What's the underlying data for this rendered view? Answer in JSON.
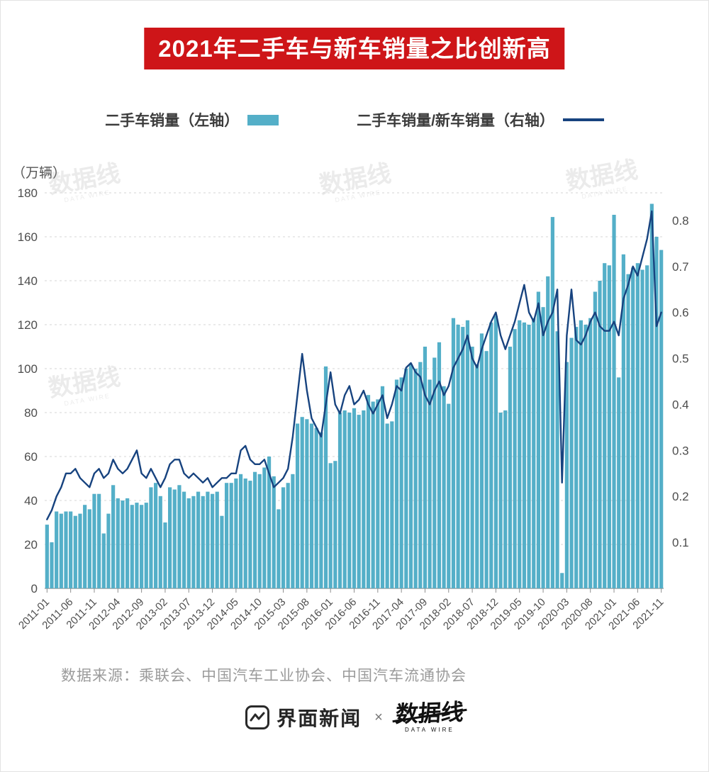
{
  "banner": {
    "title": "2021年二手车与新车销量之比创新高",
    "bg_color": "#ce1518",
    "text_color": "#ffffff"
  },
  "legend": {
    "bar_label": "二手车销量（左轴）",
    "line_label": "二手车销量/新车销量（右轴）"
  },
  "colors": {
    "bar": "#54afc8",
    "line": "#17437f",
    "grid": "#d6d6d6",
    "axis_text": "#4d4d4d",
    "baseline": "#8f8f8f"
  },
  "chart_data": {
    "type": "bar",
    "subtype": "combo-bar-line",
    "title": "2021年二手车与新车销量之比创新高",
    "unit_label": "（万辆）",
    "n_points": 131,
    "tick_interval": 5,
    "x_ticks": [
      "2011-01",
      "2011-06",
      "2011-11",
      "2012-04",
      "2012-09",
      "2013-02",
      "2013-07",
      "2013-12",
      "2014-05",
      "2014-10",
      "2015-03",
      "2015-08",
      "2016-01",
      "2016-06",
      "2016-11",
      "2017-04",
      "2017-09",
      "2018-02",
      "2018-07",
      "2018-12",
      "2019-05",
      "2019-10",
      "2020-03",
      "2020-08",
      "2021-01",
      "2021-06",
      "2021-11"
    ],
    "left_axis": {
      "min": 0,
      "max": 180,
      "ticks": [
        0,
        20,
        40,
        60,
        80,
        100,
        120,
        140,
        160,
        180
      ],
      "label": "（万辆）"
    },
    "right_axis": {
      "min": 0,
      "plot_max": 0.86,
      "ticks": [
        0.1,
        0.2,
        0.3,
        0.4,
        0.5,
        0.6,
        0.7,
        0.8
      ]
    },
    "grid": "dashed-horizontal",
    "legend_position": "top",
    "series": [
      {
        "name": "二手车销量（左轴）",
        "type": "bar",
        "axis": "left",
        "values": [
          29,
          21,
          35,
          34,
          35,
          35,
          33,
          34,
          38,
          36,
          43,
          43,
          25,
          34,
          47,
          41,
          40,
          41,
          38,
          39,
          38,
          39,
          46,
          48,
          42,
          30,
          46,
          45,
          47,
          44,
          41,
          42,
          44,
          42,
          44,
          43,
          44,
          33,
          48,
          48,
          50,
          52,
          50,
          49,
          53,
          52,
          55,
          60,
          51,
          36,
          46,
          48,
          52,
          75,
          78,
          77,
          75,
          73,
          71,
          101,
          57,
          58,
          80,
          81,
          80,
          82,
          79,
          81,
          88,
          85,
          86,
          92,
          75,
          76,
          95,
          96,
          100,
          102,
          100,
          103,
          110,
          95,
          105,
          112,
          92,
          84,
          123,
          120,
          119,
          122,
          110,
          102,
          116,
          108,
          121,
          124,
          80,
          81,
          110,
          118,
          122,
          121,
          120,
          123,
          135,
          128,
          142,
          169,
          117,
          7,
          103,
          114,
          119,
          122,
          120,
          123,
          135,
          140,
          148,
          147,
          170,
          96,
          152,
          143,
          146,
          148,
          145,
          147,
          175,
          160,
          154
        ]
      },
      {
        "name": "二手车销量/新车销量（右轴）",
        "type": "line",
        "axis": "right",
        "values": [
          0.15,
          0.17,
          0.2,
          0.22,
          0.25,
          0.25,
          0.26,
          0.24,
          0.23,
          0.22,
          0.25,
          0.26,
          0.24,
          0.25,
          0.28,
          0.26,
          0.25,
          0.26,
          0.28,
          0.3,
          0.25,
          0.24,
          0.26,
          0.24,
          0.22,
          0.24,
          0.27,
          0.28,
          0.28,
          0.25,
          0.24,
          0.25,
          0.24,
          0.23,
          0.24,
          0.22,
          0.23,
          0.24,
          0.24,
          0.25,
          0.25,
          0.3,
          0.31,
          0.28,
          0.27,
          0.27,
          0.28,
          0.25,
          0.22,
          0.23,
          0.24,
          0.26,
          0.33,
          0.42,
          0.51,
          0.43,
          0.37,
          0.35,
          0.33,
          0.4,
          0.47,
          0.4,
          0.38,
          0.42,
          0.44,
          0.4,
          0.41,
          0.43,
          0.4,
          0.38,
          0.4,
          0.42,
          0.37,
          0.4,
          0.44,
          0.43,
          0.48,
          0.49,
          0.47,
          0.46,
          0.42,
          0.4,
          0.43,
          0.45,
          0.42,
          0.44,
          0.48,
          0.5,
          0.52,
          0.55,
          0.5,
          0.48,
          0.52,
          0.55,
          0.58,
          0.6,
          0.55,
          0.52,
          0.55,
          0.58,
          0.62,
          0.66,
          0.6,
          0.58,
          0.62,
          0.55,
          0.58,
          0.6,
          0.65,
          0.23,
          0.55,
          0.65,
          0.54,
          0.53,
          0.55,
          0.58,
          0.6,
          0.57,
          0.56,
          0.56,
          0.58,
          0.55,
          0.63,
          0.66,
          0.7,
          0.68,
          0.72,
          0.76,
          0.82,
          0.57,
          0.6
        ]
      }
    ]
  },
  "watermark": {
    "text": "数据线",
    "subtext": "DATA WIRE"
  },
  "source": {
    "text": "数据来源：乘联会、中国汽车工业协会、中国汽车流通协会"
  },
  "footer": {
    "jiemian": "界面新闻",
    "separator": "×",
    "datawire": "数据线",
    "datawire_sub": "DATA WIRE"
  }
}
